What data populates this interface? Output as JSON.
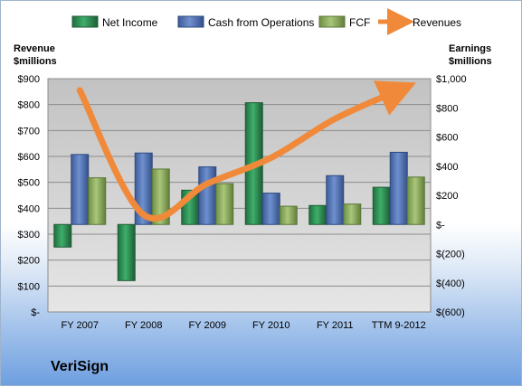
{
  "company": "VeriSign",
  "chart_data": {
    "type": "bar",
    "categories": [
      "FY 2007",
      "FY 2008",
      "FY 2009",
      "FY 2010",
      "FY 2011",
      "TTM 9-2012"
    ],
    "left_axis": {
      "title_line1": "Revenue",
      "title_line2": "$millions",
      "ylim": [
        0,
        900
      ],
      "ticks": [
        0,
        100,
        200,
        300,
        400,
        500,
        600,
        700,
        800,
        900
      ],
      "tick_labels": [
        "$-",
        "$100",
        "$200",
        "$300",
        "$400",
        "$500",
        "$600",
        "$700",
        "$800",
        "$900"
      ]
    },
    "right_axis": {
      "title_line1": "Earnings",
      "title_line2": "$millions",
      "ylim": [
        -600,
        1000
      ],
      "ticks": [
        -600,
        -400,
        -200,
        0,
        200,
        400,
        600,
        800,
        1000
      ],
      "tick_labels": [
        "$(600)",
        "$(400)",
        "$(200)",
        "$-",
        "$200",
        "$400",
        "$600",
        "$800",
        "$1,000"
      ]
    },
    "series": [
      {
        "name": "Net Income",
        "type": "bar",
        "axis": "right",
        "color": "#2e8b57",
        "values": [
          -155,
          -385,
          235,
          835,
          130,
          255
        ]
      },
      {
        "name": "Cash from Operations",
        "type": "bar",
        "axis": "right",
        "color": "#4f6fae",
        "values": [
          480,
          490,
          395,
          215,
          335,
          495
        ]
      },
      {
        "name": "FCF",
        "type": "bar",
        "axis": "right",
        "color": "#8aab5a",
        "values": [
          320,
          380,
          280,
          125,
          140,
          325
        ]
      },
      {
        "name": "Revenues",
        "type": "line",
        "axis": "left",
        "color": "#f08a3a",
        "values": [
          855,
          375,
          495,
          595,
          745,
          855
        ]
      }
    ],
    "grid": true,
    "legend_position": "top"
  }
}
